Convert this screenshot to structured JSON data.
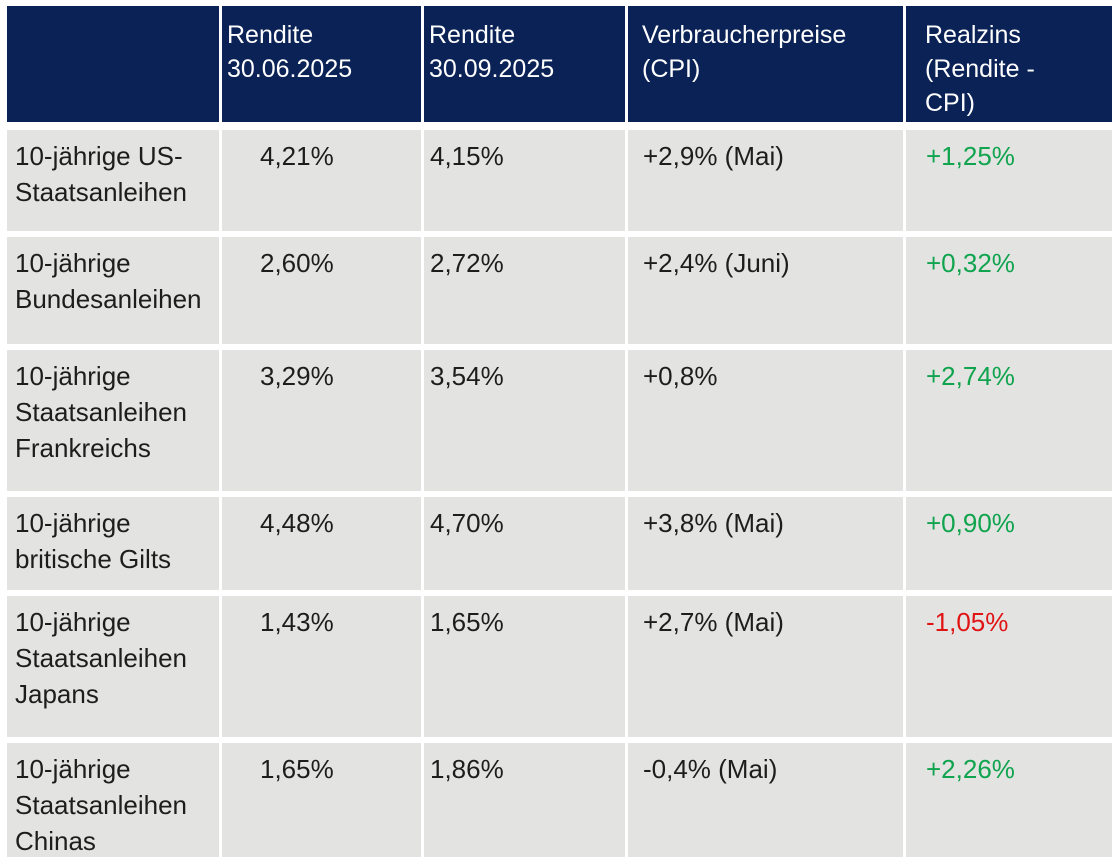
{
  "chart_data": {
    "type": "table",
    "title": "",
    "columns": [
      "",
      "Rendite 30.06.2025",
      "Rendite 30.09.2025",
      "Verbraucherpreise (CPI)",
      "Realzins (Rendite - CPI)"
    ],
    "rows": [
      [
        "10-jährige US-Staatsanleihen",
        "4,21%",
        "4,15%",
        "+2,9% (Mai)",
        "+1,25%"
      ],
      [
        "10-jährige Bundesanleihen",
        "2,60%",
        "2,72%",
        "+2,4% (Juni)",
        "+0,32%"
      ],
      [
        "10-jährige Staatsanleihen Frankreichs",
        "3,29%",
        "3,54%",
        "+0,8%",
        "+2,74%"
      ],
      [
        "10-jährige britische Gilts",
        "4,48%",
        "4,70%",
        "+3,8% (Mai)",
        "+0,90%"
      ],
      [
        "10-jährige Staatsanleihen Japans",
        "1,43%",
        "1,65%",
        "+2,7% (Mai)",
        "-1,05%"
      ],
      [
        "10-jährige Staatsanleihen Chinas",
        "1,65%",
        "1,86%",
        "-0,4% (Mai)",
        "+2,26%"
      ]
    ],
    "realzins_trends": [
      "positive",
      "positive",
      "positive",
      "positive",
      "negative",
      "positive"
    ]
  },
  "colors": {
    "header_bg": "#0a2256",
    "header_text": "#ffffff",
    "row_bg": "#e3e3e2",
    "text": "#1d1d1b",
    "positive": "#10a44e",
    "negative": "#e01414",
    "page_bg": "#ffffff"
  }
}
